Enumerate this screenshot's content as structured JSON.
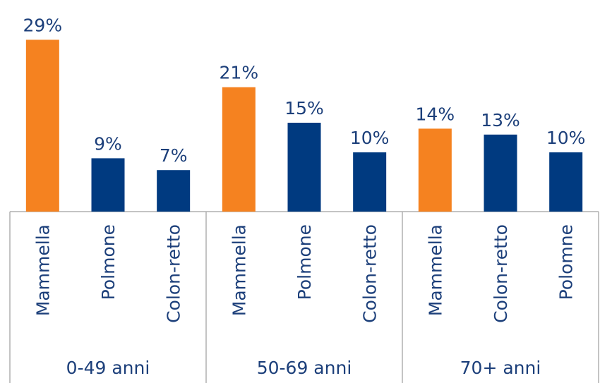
{
  "chart_data": {
    "type": "bar",
    "groups": [
      {
        "name": "0-49 anni",
        "categories": [
          "Mammella",
          "Polmone",
          "Colon-retto"
        ],
        "values": [
          29,
          9,
          7
        ],
        "value_labels": [
          "29%",
          "9%",
          "7%"
        ],
        "colors": [
          "#f58220",
          "#003a80",
          "#003a80"
        ]
      },
      {
        "name": "50-69 anni",
        "categories": [
          "Mammella",
          "Polmone",
          "Colon-retto"
        ],
        "values": [
          21,
          15,
          10
        ],
        "value_labels": [
          "21%",
          "15%",
          "10%"
        ],
        "colors": [
          "#f58220",
          "#003a80",
          "#003a80"
        ]
      },
      {
        "name": "70+ anni",
        "categories": [
          "Mammella",
          "Colon-retto",
          "Polomne"
        ],
        "values": [
          14,
          13,
          10
        ],
        "value_labels": [
          "14%",
          "13%",
          "10%"
        ],
        "colors": [
          "#f58220",
          "#003a80",
          "#003a80"
        ]
      }
    ]
  }
}
